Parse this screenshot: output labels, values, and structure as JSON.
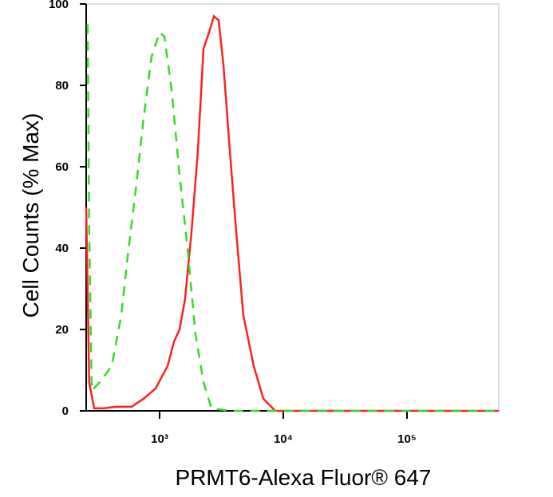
{
  "chart_data": {
    "type": "line",
    "xlabel": "PRMT6-Alexa Fluor® 647",
    "ylabel": "Cell Counts (% Max)",
    "xscale": "log",
    "xlim": [
      255,
      552000
    ],
    "ylim": [
      0,
      100
    ],
    "xticks": [
      {
        "value": 1000,
        "label": "10³"
      },
      {
        "value": 10000,
        "label": "10⁴"
      },
      {
        "value": 100000,
        "label": "10⁵"
      }
    ],
    "yticks": [
      0,
      20,
      40,
      60,
      80,
      100
    ],
    "series": [
      {
        "color": "#ff2020",
        "line_style": "solid",
        "x": [
          255,
          270,
          296,
          353,
          442,
          594,
          743,
          929,
          1160,
          1307,
          1450,
          1607,
          1811,
          2040,
          2264,
          2513,
          2748,
          3002,
          3281,
          3696,
          4161,
          4755,
          5771,
          6899,
          8608,
          19500,
          552000
        ],
        "values": [
          50,
          7,
          0.6,
          0.6,
          1,
          1,
          3,
          5.5,
          11,
          17,
          20,
          27.5,
          44,
          64,
          89,
          93,
          97,
          96,
          85,
          64,
          44,
          23.5,
          11,
          3,
          0,
          0,
          0
        ]
      },
      {
        "color": "#33dd22",
        "line_style": "dashed",
        "x": [
          262,
          270,
          283,
          328,
          410,
          490,
          552,
          640,
          743,
          861,
          1000,
          1093,
          1249,
          1450,
          1682,
          1950,
          2264,
          2625,
          3809,
          552000
        ],
        "values": [
          95,
          44,
          5,
          7,
          11,
          23.5,
          38,
          54,
          72,
          87,
          93,
          92,
          79,
          58,
          40,
          19,
          7,
          0.6,
          0,
          0
        ]
      }
    ]
  }
}
